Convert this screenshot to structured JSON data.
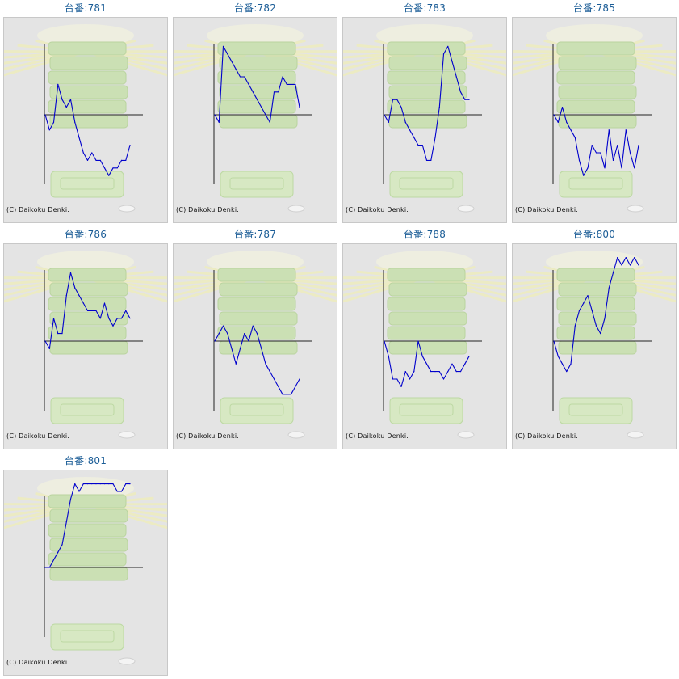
{
  "copyright": "(C) Daikoku Denki.",
  "colors": {
    "title": "#1a5c96",
    "line": "#0000cc",
    "axis": "#222222",
    "panel_bg": "#e4e4e4"
  },
  "chart_data": [
    {
      "type": "line",
      "title": "台番:781",
      "x": [
        0,
        5,
        10,
        15,
        20,
        25,
        30,
        35,
        40,
        45,
        50,
        55,
        60,
        65,
        70,
        75,
        80,
        85,
        90,
        95,
        100
      ],
      "values": [
        0,
        -2,
        -1,
        4,
        2,
        1,
        2,
        -1,
        -3,
        -5,
        -6,
        -5,
        -6,
        -6,
        -7,
        -8,
        -7,
        -7,
        -6,
        -6,
        -4
      ]
    },
    {
      "type": "line",
      "title": "台番:782",
      "x": [
        0,
        5,
        10,
        15,
        20,
        25,
        30,
        35,
        40,
        45,
        50,
        55,
        60,
        65,
        70,
        75,
        80,
        85,
        90,
        95,
        100
      ],
      "values": [
        0,
        -1,
        9,
        8,
        7,
        6,
        5,
        5,
        4,
        3,
        2,
        1,
        0,
        -1,
        3,
        3,
        5,
        4,
        4,
        4,
        1
      ]
    },
    {
      "type": "line",
      "title": "台番:783",
      "x": [
        0,
        5,
        10,
        15,
        20,
        25,
        30,
        35,
        40,
        45,
        50,
        55,
        60,
        65,
        70,
        75,
        80,
        85,
        90,
        95,
        100
      ],
      "values": [
        0,
        -1,
        2,
        2,
        1,
        -1,
        -2,
        -3,
        -4,
        -4,
        -6,
        -6,
        -3,
        1,
        8,
        9,
        7,
        5,
        3,
        2,
        2
      ]
    },
    {
      "type": "line",
      "title": "台番:785",
      "x": [
        0,
        5,
        10,
        15,
        20,
        25,
        30,
        35,
        40,
        45,
        50,
        55,
        60,
        65,
        70,
        75,
        80,
        85,
        90,
        95,
        100
      ],
      "values": [
        0,
        -1,
        1,
        -1,
        -2,
        -3,
        -6,
        -8,
        -7,
        -4,
        -5,
        -5,
        -7,
        -2,
        -6,
        -4,
        -7,
        -2,
        -5,
        -7,
        -4
      ]
    },
    {
      "type": "line",
      "title": "台番:786",
      "x": [
        0,
        5,
        10,
        15,
        20,
        25,
        30,
        35,
        40,
        45,
        50,
        55,
        60,
        65,
        70,
        75,
        80,
        85,
        90,
        95,
        100
      ],
      "values": [
        0,
        -1,
        3,
        1,
        1,
        6,
        9,
        7,
        6,
        5,
        4,
        4,
        4,
        3,
        5,
        3,
        2,
        3,
        3,
        4,
        3
      ]
    },
    {
      "type": "line",
      "title": "台番:787",
      "x": [
        0,
        5,
        10,
        15,
        20,
        25,
        30,
        35,
        40,
        45,
        50,
        55,
        60,
        65,
        70,
        75,
        80,
        85,
        90,
        95,
        100
      ],
      "values": [
        0,
        1,
        2,
        1,
        -1,
        -3,
        -1,
        1,
        0,
        2,
        1,
        -1,
        -3,
        -4,
        -5,
        -6,
        -7,
        -7,
        -7,
        -6,
        -5
      ]
    },
    {
      "type": "line",
      "title": "台番:788",
      "x": [
        0,
        5,
        10,
        15,
        20,
        25,
        30,
        35,
        40,
        45,
        50,
        55,
        60,
        65,
        70,
        75,
        80,
        85,
        90,
        95,
        100
      ],
      "values": [
        0,
        -2,
        -5,
        -5,
        -6,
        -4,
        -5,
        -4,
        0,
        -2,
        -3,
        -4,
        -4,
        -4,
        -5,
        -4,
        -3,
        -4,
        -4,
        -3,
        -2
      ]
    },
    {
      "type": "line",
      "title": "台番:800",
      "x": [
        0,
        5,
        10,
        15,
        20,
        25,
        30,
        35,
        40,
        45,
        50,
        55,
        60,
        65,
        70,
        75,
        80,
        85,
        90,
        95,
        100
      ],
      "values": [
        0,
        -2,
        -3,
        -4,
        -3,
        2,
        4,
        5,
        6,
        4,
        2,
        1,
        3,
        7,
        9,
        11,
        10,
        11,
        10,
        11,
        10
      ]
    },
    {
      "type": "line",
      "title": "台番:801",
      "x": [
        0,
        5,
        10,
        15,
        20,
        25,
        30,
        35,
        40,
        45,
        50,
        55,
        60,
        65,
        70,
        75,
        80,
        85,
        90,
        95,
        100
      ],
      "values": [
        0,
        0,
        1,
        2,
        3,
        6,
        9,
        11,
        10,
        11,
        11,
        11,
        11,
        11,
        11,
        11,
        11,
        10,
        10,
        11,
        11
      ]
    }
  ]
}
